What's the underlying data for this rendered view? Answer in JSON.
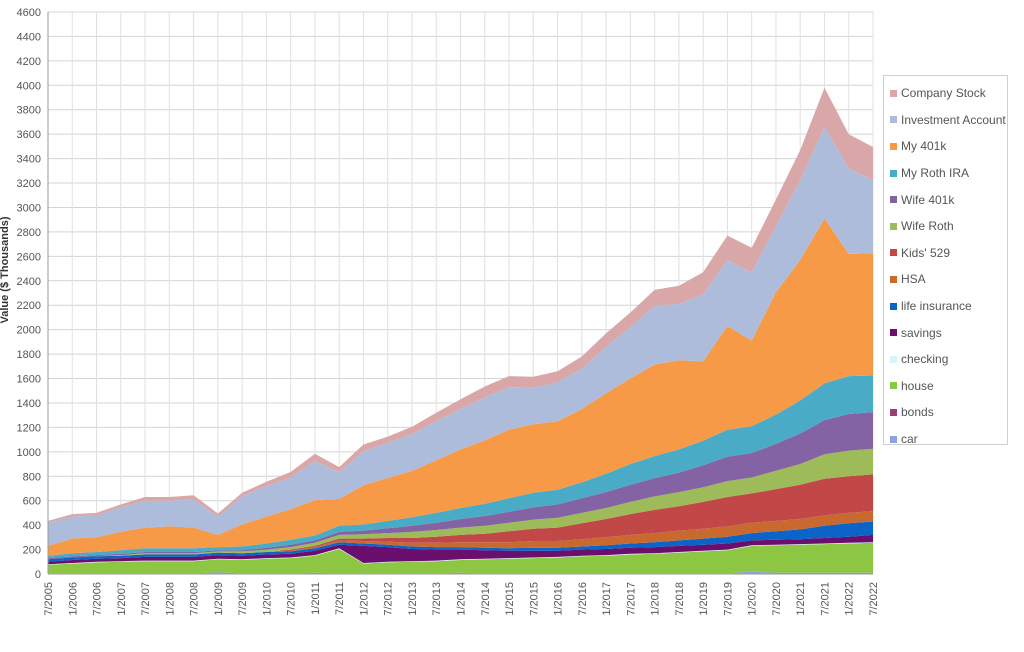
{
  "chart_data": {
    "type": "area",
    "stacked": true,
    "title": "",
    "xlabel": "",
    "ylabel": "Value ($ Thousands)",
    "ylim": [
      0,
      4600
    ],
    "ytick_step": 200,
    "grid": true,
    "legend_position": "right",
    "x_ticks": [
      "7/2005",
      "1/2006",
      "7/2006",
      "1/2007",
      "7/2007",
      "1/2008",
      "7/2008",
      "1/2009",
      "7/2009",
      "1/2010",
      "7/2010",
      "1/2011",
      "7/2011",
      "1/2012",
      "7/2012",
      "1/2013",
      "7/2013",
      "1/2014",
      "7/2014",
      "1/2015",
      "7/2015",
      "1/2016",
      "7/2016",
      "1/2017",
      "7/2017",
      "1/2018",
      "7/2018",
      "1/2019",
      "7/2019",
      "1/2020",
      "7/2020",
      "1/2021",
      "7/2021",
      "1/2022",
      "7/2022"
    ],
    "x_points": [
      "7/2005",
      "1/2006",
      "7/2006",
      "1/2007",
      "7/2007",
      "1/2008",
      "7/2008",
      "1/2009",
      "7/2009",
      "1/2010",
      "7/2010",
      "1/2011",
      "7/2011",
      "1/2012",
      "7/2012",
      "1/2013",
      "7/2013",
      "1/2014",
      "7/2014",
      "1/2015",
      "7/2015",
      "1/2016",
      "7/2016",
      "1/2017",
      "7/2017",
      "1/2018",
      "7/2018",
      "1/2019",
      "7/2019",
      "1/2020",
      "7/2020",
      "1/2021",
      "7/2021",
      "1/2022",
      "7/2022"
    ],
    "series": [
      {
        "name": "car",
        "color": "#8ea0e0",
        "values": [
          5,
          5,
          5,
          5,
          5,
          5,
          5,
          15,
          5,
          5,
          5,
          10,
          5,
          5,
          5,
          5,
          5,
          10,
          5,
          5,
          5,
          5,
          5,
          5,
          5,
          5,
          5,
          5,
          5,
          20,
          10,
          10,
          10,
          10,
          10
        ]
      },
      {
        "name": "bonds",
        "color": "#9c3a7a",
        "values": [
          0,
          0,
          0,
          0,
          0,
          0,
          0,
          0,
          0,
          0,
          0,
          0,
          0,
          0,
          0,
          0,
          0,
          0,
          0,
          0,
          0,
          0,
          0,
          0,
          0,
          0,
          0,
          0,
          0,
          0,
          0,
          0,
          0,
          0,
          0
        ]
      },
      {
        "name": "house",
        "color": "#8dc642",
        "values": [
          70,
          80,
          90,
          95,
          100,
          100,
          100,
          105,
          110,
          120,
          125,
          140,
          200,
          80,
          90,
          95,
          100,
          105,
          115,
          120,
          125,
          130,
          140,
          145,
          155,
          160,
          170,
          180,
          190,
          210,
          225,
          230,
          235,
          240,
          245
        ]
      },
      {
        "name": "checking",
        "color": "#d8f4f8",
        "values": [
          5,
          5,
          5,
          5,
          5,
          5,
          5,
          5,
          5,
          5,
          5,
          5,
          5,
          5,
          5,
          5,
          5,
          5,
          5,
          5,
          5,
          5,
          5,
          5,
          5,
          5,
          5,
          5,
          5,
          5,
          5,
          5,
          5,
          5,
          5
        ]
      },
      {
        "name": "savings",
        "color": "#6a0f6e",
        "values": [
          20,
          25,
          25,
          25,
          30,
          30,
          30,
          30,
          30,
          30,
          30,
          35,
          30,
          140,
          120,
          100,
          90,
          80,
          70,
          60,
          55,
          50,
          50,
          50,
          50,
          50,
          50,
          50,
          50,
          40,
          40,
          40,
          45,
          50,
          60
        ]
      },
      {
        "name": "life insurance",
        "color": "#0c63c8",
        "values": [
          20,
          20,
          20,
          20,
          20,
          20,
          20,
          20,
          20,
          20,
          20,
          20,
          20,
          20,
          20,
          20,
          20,
          20,
          20,
          20,
          25,
          25,
          25,
          30,
          35,
          40,
          45,
          50,
          55,
          60,
          70,
          80,
          100,
          110,
          110
        ]
      },
      {
        "name": "HSA",
        "color": "#c86a30",
        "values": [
          0,
          0,
          0,
          0,
          0,
          0,
          0,
          0,
          0,
          0,
          5,
          10,
          15,
          20,
          25,
          30,
          35,
          40,
          45,
          50,
          55,
          55,
          60,
          65,
          70,
          75,
          80,
          80,
          85,
          85,
          85,
          85,
          85,
          85,
          85
        ]
      },
      {
        "name": "Kids' 529",
        "color": "#c24848",
        "values": [
          0,
          0,
          0,
          0,
          0,
          0,
          0,
          0,
          0,
          0,
          10,
          10,
          15,
          20,
          30,
          40,
          50,
          60,
          70,
          90,
          100,
          110,
          130,
          150,
          170,
          190,
          200,
          220,
          240,
          240,
          260,
          280,
          300,
          300,
          300
        ]
      },
      {
        "name": "Wife Roth",
        "color": "#9dbb58",
        "values": [
          0,
          0,
          0,
          5,
          10,
          10,
          10,
          10,
          15,
          20,
          20,
          25,
          30,
          35,
          40,
          50,
          55,
          60,
          65,
          70,
          75,
          80,
          85,
          90,
          100,
          110,
          115,
          120,
          130,
          130,
          150,
          170,
          200,
          210,
          210
        ]
      },
      {
        "name": "Wife 401k",
        "color": "#8463a5",
        "values": [
          10,
          10,
          10,
          10,
          10,
          10,
          10,
          10,
          10,
          15,
          20,
          20,
          25,
          30,
          40,
          50,
          60,
          70,
          80,
          90,
          100,
          110,
          120,
          130,
          140,
          150,
          160,
          180,
          200,
          200,
          220,
          250,
          280,
          300,
          300
        ]
      },
      {
        "name": "My Roth IRA",
        "color": "#4aabc6",
        "values": [
          20,
          25,
          25,
          30,
          30,
          30,
          30,
          25,
          30,
          35,
          40,
          40,
          50,
          50,
          60,
          70,
          80,
          90,
          100,
          110,
          120,
          120,
          130,
          150,
          170,
          180,
          190,
          200,
          220,
          220,
          240,
          270,
          300,
          310,
          300
        ]
      },
      {
        "name": "My 401k",
        "color": "#f69a48",
        "values": [
          80,
          120,
          120,
          150,
          170,
          180,
          170,
          100,
          180,
          220,
          250,
          290,
          220,
          320,
          350,
          380,
          430,
          480,
          520,
          560,
          560,
          560,
          600,
          660,
          700,
          750,
          730,
          650,
          850,
          700,
          1000,
          1150,
          1350,
          1000,
          1000
        ]
      },
      {
        "name": "Investment Account",
        "color": "#aebcdb",
        "values": [
          190,
          180,
          180,
          200,
          220,
          210,
          230,
          150,
          230,
          250,
          260,
          320,
          220,
          280,
          290,
          300,
          320,
          330,
          350,
          350,
          300,
          320,
          330,
          380,
          420,
          480,
          460,
          550,
          540,
          560,
          540,
          650,
          750,
          700,
          600
        ]
      },
      {
        "name": "Company Stock",
        "color": "#d9a7a7",
        "values": [
          15,
          20,
          20,
          25,
          30,
          30,
          35,
          25,
          30,
          35,
          45,
          60,
          40,
          55,
          50,
          60,
          70,
          80,
          90,
          90,
          90,
          90,
          100,
          110,
          120,
          130,
          150,
          180,
          200,
          200,
          220,
          250,
          320,
          280,
          270
        ]
      }
    ]
  },
  "legend": {
    "items": [
      {
        "name": "Company Stock",
        "color": "#d9a7a7"
      },
      {
        "name": "Investment Account",
        "color": "#aebcdb"
      },
      {
        "name": "My 401k",
        "color": "#f69a48"
      },
      {
        "name": "My Roth IRA",
        "color": "#4aabc6"
      },
      {
        "name": "Wife 401k",
        "color": "#8463a5"
      },
      {
        "name": "Wife Roth",
        "color": "#9dbb58"
      },
      {
        "name": "Kids' 529",
        "color": "#c24848"
      },
      {
        "name": "HSA",
        "color": "#c86a30"
      },
      {
        "name": "life insurance",
        "color": "#0c63c8"
      },
      {
        "name": "savings",
        "color": "#6a0f6e"
      },
      {
        "name": "checking",
        "color": "#d8f4f8"
      },
      {
        "name": "house",
        "color": "#8dc642"
      },
      {
        "name": "bonds",
        "color": "#9c3a7a"
      },
      {
        "name": "car",
        "color": "#8ea0e0"
      }
    ]
  }
}
